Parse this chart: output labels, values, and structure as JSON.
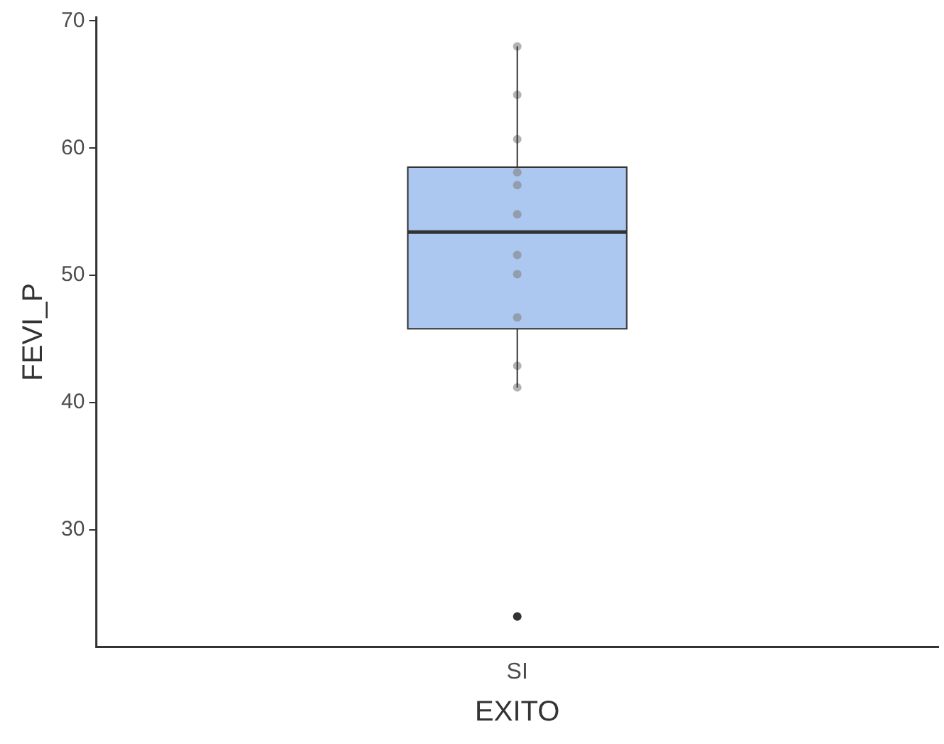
{
  "chart_data": {
    "type": "box",
    "xlabel": "EXITO",
    "ylabel": "FEVI_P",
    "categories": [
      "SI"
    ],
    "ylim": [
      20.8,
      70.3
    ],
    "yticks": [
      30,
      40,
      50,
      60,
      70
    ],
    "grid": false,
    "legend": false,
    "series": [
      {
        "color": "#adc8f0",
        "boxes": [
          {
            "low": 41.2,
            "q1": 45.8,
            "median": 53.4,
            "q3": 58.5,
            "high": 68.0,
            "outliers": [
              23.2
            ]
          }
        ]
      },
      {
        "type": "scatter",
        "color": "#808080",
        "x": [
          "SI",
          "SI",
          "SI",
          "SI",
          "SI",
          "SI",
          "SI",
          "SI",
          "SI",
          "SI",
          "SI"
        ],
        "values": [
          64.2,
          68.0,
          60.7,
          57.1,
          58.1,
          54.8,
          51.6,
          50.1,
          46.7,
          42.9,
          41.2
        ]
      }
    ]
  }
}
